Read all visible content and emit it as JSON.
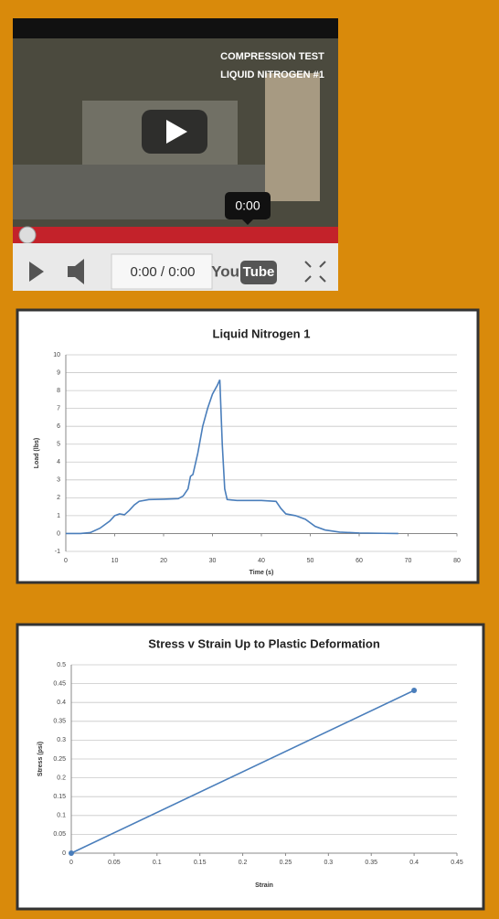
{
  "video": {
    "overlay_lines": [
      "COMPRESSION TEST",
      "LIQUID NITROGEN #1"
    ],
    "tooltip": "0:00",
    "time": "0:00 / 0:00",
    "logo_left": "You",
    "logo_right": "Tube"
  },
  "chart_data": [
    {
      "type": "line",
      "title": "Liquid Nitrogen 1",
      "x_label": "Time (s)",
      "y_label": "Load (lbs)",
      "color": "#4a7ebb",
      "grid": true,
      "markers": false,
      "x": [
        0,
        3,
        5,
        7,
        9,
        10,
        11,
        12,
        13,
        14,
        15,
        17,
        20,
        23,
        24,
        25,
        25.5,
        26,
        27,
        28,
        29,
        30,
        31,
        31.5,
        32,
        32.5,
        33,
        35,
        40,
        43,
        44,
        45,
        47,
        49,
        51,
        53,
        56,
        60,
        65,
        68
      ],
      "values": [
        0,
        0,
        0.05,
        0.3,
        0.7,
        1.0,
        1.1,
        1.05,
        1.3,
        1.6,
        1.8,
        1.9,
        1.92,
        1.95,
        2.1,
        2.5,
        3.2,
        3.3,
        4.5,
        6,
        7,
        7.8,
        8.3,
        8.6,
        5,
        2.5,
        1.9,
        1.85,
        1.85,
        1.8,
        1.4,
        1.1,
        1.0,
        0.8,
        0.4,
        0.2,
        0.08,
        0.03,
        0.01,
        0
      ],
      "xlim": [
        0,
        80
      ],
      "xticks": [
        0,
        10,
        20,
        30,
        40,
        50,
        60,
        70,
        80
      ],
      "ylim": [
        -1,
        10
      ],
      "yticks": [
        -1,
        0,
        1,
        2,
        3,
        4,
        5,
        6,
        7,
        8,
        9,
        10
      ]
    },
    {
      "type": "line",
      "title": "Stress v Strain Up to Plastic Deformation",
      "x_label": "Strain",
      "y_label": "Stress (psi)",
      "color": "#4a7ebb",
      "grid": true,
      "markers": true,
      "x": [
        0,
        0.4
      ],
      "values": [
        0,
        0.432
      ],
      "xlim": [
        0,
        0.45
      ],
      "xticks": [
        0,
        0.05,
        0.1,
        0.15,
        0.2,
        0.25,
        0.3,
        0.35,
        0.4,
        0.45
      ],
      "ylim": [
        0,
        0.5
      ],
      "yticks": [
        0,
        0.05,
        0.1,
        0.15,
        0.2,
        0.25,
        0.3,
        0.35,
        0.4,
        0.45,
        0.5
      ]
    }
  ]
}
